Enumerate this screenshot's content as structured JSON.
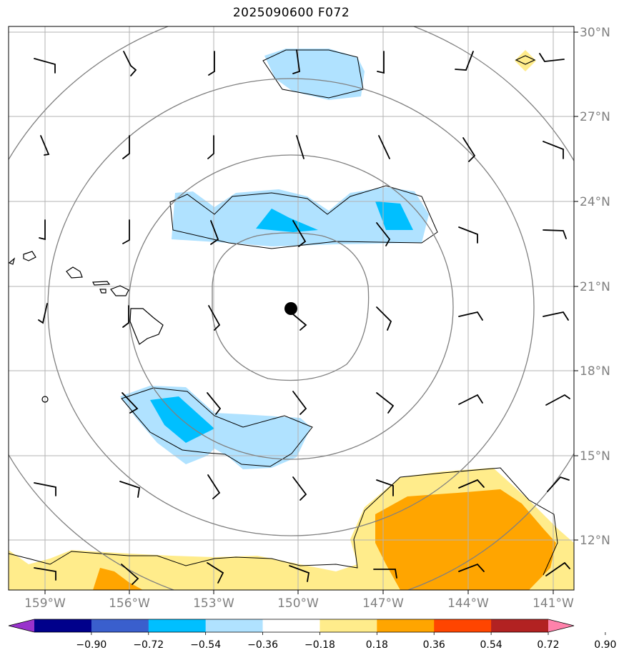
{
  "title": "2025090600 F072",
  "map": {
    "lon_labels": [
      "159°W",
      "156°W",
      "153°W",
      "150°W",
      "147°W",
      "144°W",
      "141°W"
    ],
    "lat_labels": [
      "30°N",
      "27°N",
      "24°N",
      "21°N",
      "18°N",
      "15°N",
      "12°N"
    ],
    "center_marker": "storm-center"
  },
  "colorbar": {
    "ticks": [
      "−0.90",
      "−0.72",
      "−0.54",
      "−0.36",
      "−0.18",
      "0.18",
      "0.36",
      "0.54",
      "0.72",
      "0.90"
    ],
    "colors": [
      "#9932cc",
      "#00008b",
      "#3a5fcd",
      "#00bfff",
      "#b0e2ff",
      "#ffffff",
      "#ffec8b",
      "#ffa500",
      "#ff4500",
      "#b22222",
      "#ff82ab"
    ]
  }
}
